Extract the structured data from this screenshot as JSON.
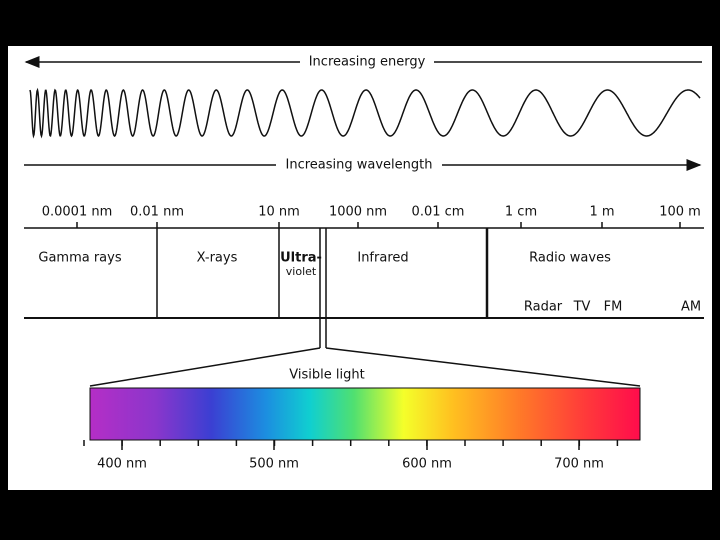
{
  "arrows": {
    "energy": "Increasing energy",
    "wavelength": "Increasing wavelength"
  },
  "scale": [
    "0.0001 nm",
    "0.01 nm",
    "10 nm",
    "1000 nm",
    "0.01 cm",
    "1 cm",
    "1 m",
    "100 m"
  ],
  "bands": {
    "gamma": "Gamma rays",
    "xrays": "X-rays",
    "ultraviolet": [
      "Ultra-",
      "violet"
    ],
    "infrared": "Infrared",
    "radio": "Radio waves"
  },
  "radio_uses": [
    "Radar",
    "TV",
    "FM",
    "AM"
  ],
  "visible": {
    "title": "Visible light",
    "ticks": [
      "400 nm",
      "500 nm",
      "600 nm",
      "700 nm"
    ]
  }
}
